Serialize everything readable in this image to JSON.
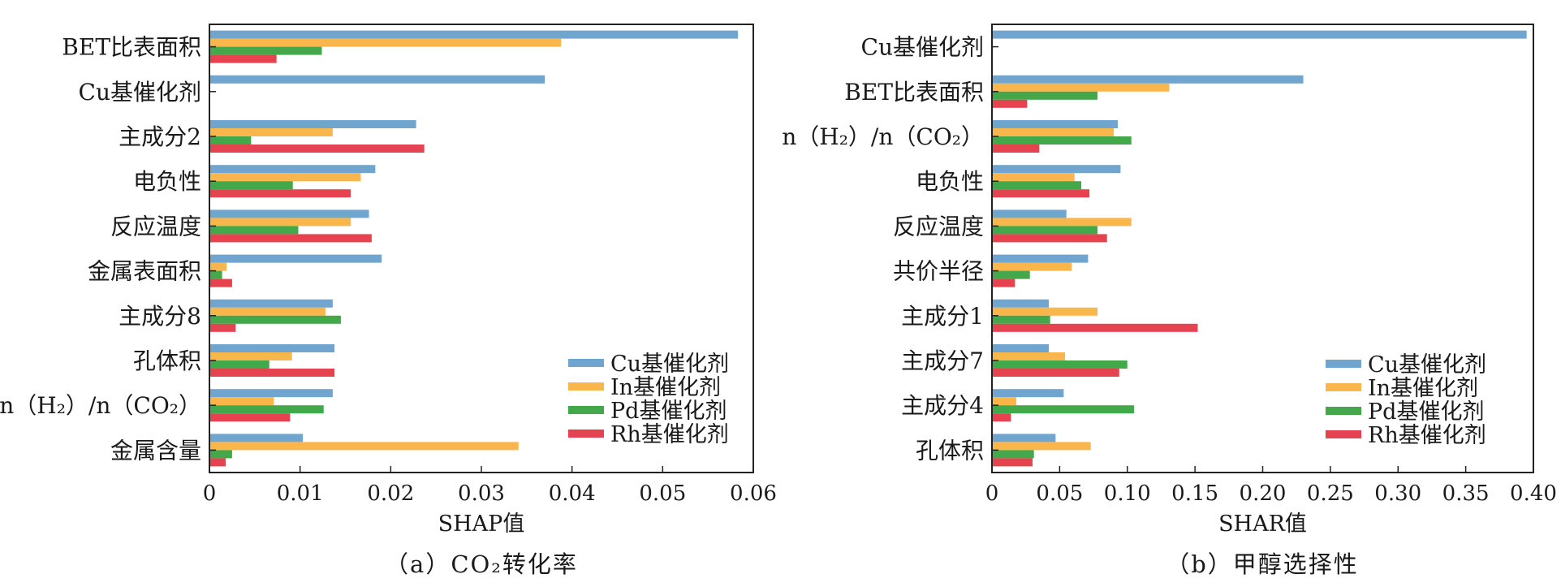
{
  "chart_data": [
    {
      "type": "bar",
      "orientation": "horizontal",
      "title": "（a）CO₂转化率",
      "xlabel": "SHAP值",
      "ylabel": "",
      "xlim": [
        0,
        0.06
      ],
      "xticks": [
        "0",
        "0.01",
        "0.02",
        "0.03",
        "0.04",
        "0.05",
        "0.06"
      ],
      "categories": [
        "BET比表面积",
        "Cu基催化剂",
        "主成分2",
        "电负性",
        "反应温度",
        "金属表面积",
        "主成分8",
        "孔体积",
        "n（H₂）/n（CO₂）",
        "金属含量"
      ],
      "series": [
        {
          "name": "Cu基催化剂",
          "color": "#6fa5cf",
          "values": [
            0.0583,
            0.037,
            0.0228,
            0.0183,
            0.0176,
            0.019,
            0.0136,
            0.0138,
            0.0136,
            0.0103
          ]
        },
        {
          "name": "In基催化剂",
          "color": "#f8b64c",
          "values": [
            0.0388,
            0.0,
            0.0136,
            0.0167,
            0.0156,
            0.0019,
            0.0128,
            0.0091,
            0.0071,
            0.0341
          ]
        },
        {
          "name": "Pd基催化剂",
          "color": "#42a84a",
          "values": [
            0.0124,
            0.0,
            0.0046,
            0.0092,
            0.0098,
            0.0014,
            0.0145,
            0.0066,
            0.0126,
            0.0025
          ]
        },
        {
          "name": "Rh基催化剂",
          "color": "#e5434f",
          "values": [
            0.0074,
            0.0,
            0.0237,
            0.0156,
            0.0179,
            0.0025,
            0.0029,
            0.0138,
            0.0089,
            0.0018
          ]
        }
      ],
      "legend": "lower-right"
    },
    {
      "type": "bar",
      "orientation": "horizontal",
      "title": "（b）甲醇选择性",
      "xlabel": "SHAR值",
      "ylabel": "",
      "xlim": [
        0,
        0.4
      ],
      "xticks": [
        "0",
        "0.05",
        "0.10",
        "0.15",
        "0.20",
        "0.25",
        "0.30",
        "0.35",
        "0.40"
      ],
      "categories": [
        "Cu基催化剂",
        "BET比表面积",
        "n（H₂）/n（CO₂）",
        "电负性",
        "反应温度",
        "共价半径",
        "主成分1",
        "主成分7",
        "主成分4",
        "孔体积"
      ],
      "series": [
        {
          "name": "Cu基催化剂",
          "color": "#6fa5cf",
          "values": [
            0.395,
            0.23,
            0.093,
            0.095,
            0.055,
            0.071,
            0.042,
            0.042,
            0.053,
            0.047
          ]
        },
        {
          "name": "In基催化剂",
          "color": "#f8b64c",
          "values": [
            0.0,
            0.131,
            0.09,
            0.061,
            0.103,
            0.059,
            0.078,
            0.054,
            0.018,
            0.073
          ]
        },
        {
          "name": "Pd基催化剂",
          "color": "#42a84a",
          "values": [
            0.0,
            0.078,
            0.103,
            0.066,
            0.078,
            0.028,
            0.043,
            0.1,
            0.105,
            0.031
          ]
        },
        {
          "name": "Rh基催化剂",
          "color": "#e5434f",
          "values": [
            0.0,
            0.026,
            0.035,
            0.072,
            0.085,
            0.017,
            0.152,
            0.094,
            0.014,
            0.03
          ]
        }
      ],
      "legend": "lower-right"
    }
  ]
}
